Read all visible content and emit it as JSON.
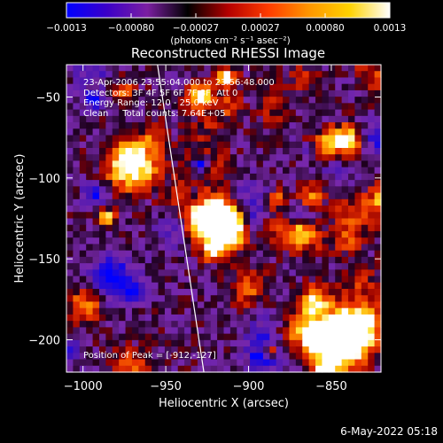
{
  "colorbar": {
    "ticks": [
      "-0.0013",
      "-0.00080",
      "-0.00027",
      "0.00027",
      "0.00080",
      "0.0013"
    ],
    "label": "(photons cm⁻² s⁻¹ asec⁻²)",
    "colors": [
      "#0000ff",
      "#3b00c8",
      "#7b1fa2",
      "#000000",
      "#b40000",
      "#ff3c00",
      "#ff9600",
      "#ffd200",
      "#ffffff"
    ]
  },
  "chart_data": {
    "type": "heatmap",
    "title": "Reconstructed RHESSI Image",
    "xlabel": "Heliocentric X (arcsec)",
    "ylabel": "Heliocentric Y (arcsec)",
    "xlim": [
      -1010,
      -820
    ],
    "ylim": [
      -220,
      -30
    ],
    "xticks": [
      -1000,
      -950,
      -900,
      -850
    ],
    "yticks": [
      -50,
      -100,
      -150,
      -200
    ],
    "xtick_labels": [
      "−1000",
      "−950",
      "−900",
      "−850"
    ],
    "ytick_labels": [
      "−50",
      "−100",
      "−150",
      "−200"
    ],
    "value_range": [
      -0.0013,
      0.0013
    ],
    "peak": [
      -912,
      -127
    ],
    "limb_line": {
      "top": [
        -955,
        -30
      ],
      "bottom": [
        -927,
        -220
      ]
    }
  },
  "annotations": [
    "23-Apr-2006 23:55:04.000 to 23:56:48.000",
    "Detectors: 3F 4F 5F 6F 7F 8F, Att 0",
    "Energy Range: 12.0 - 25.0 keV",
    "Clean     Total counts: 7.64E+05"
  ],
  "peak_label": "Position of Peak = [-912,-127]",
  "footer": {
    "date": "6-May-2022 05:18"
  }
}
